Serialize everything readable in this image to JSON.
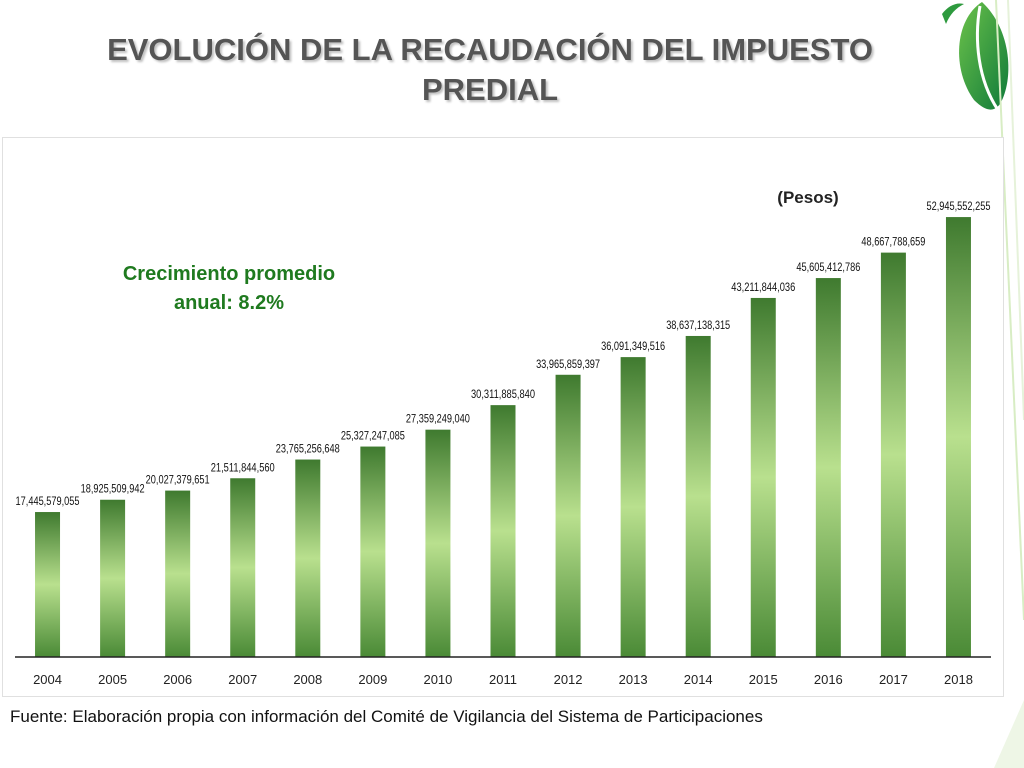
{
  "title_line1": "EVOLUCIÓN DE LA RECAUDACIÓN DEL IMPUESTO",
  "title_line2": "PREDIAL",
  "growth_note_line1": "Crecimiento promedio",
  "growth_note_line2": "anual: 8.2%",
  "unit_label": "(Pesos)",
  "source_note": "Fuente: Elaboración propia con información del Comité de Vigilancia del Sistema de Participaciones",
  "colors": {
    "bar_dark": "#3f7a2f",
    "bar_light": "#b9e08e",
    "accent_green": "#1f7a1f",
    "deco_green": "#2e9a3e"
  },
  "chart_data": {
    "type": "bar",
    "categories": [
      "2004",
      "2005",
      "2006",
      "2007",
      "2008",
      "2009",
      "2010",
      "2011",
      "2012",
      "2013",
      "2014",
      "2015",
      "2016",
      "2017",
      "2018"
    ],
    "values": [
      17445579055,
      18925509942,
      20027379651,
      21511844560,
      23765256648,
      25327247085,
      27359249040,
      30311885840,
      33965859397,
      36091349516,
      38637138315,
      43211844036,
      45605412786,
      48667788659,
      52945552255
    ],
    "value_labels": [
      "17,445,579,055",
      "18,925,509,942",
      "20,027,379,651",
      "21,511,844,560",
      "23,765,256,648",
      "25,327,247,085",
      "27,359,249,040",
      "30,311,885,840",
      "33,965,859,397",
      "36,091,349,516",
      "38,637,138,315",
      "43,211,844,036",
      "45,605,412,786",
      "48,667,788,659",
      "52,945,552,255"
    ],
    "title": "",
    "xlabel": "",
    "ylabel": "",
    "ylim": [
      0,
      55000000000
    ],
    "grid": false,
    "legend": "none"
  }
}
